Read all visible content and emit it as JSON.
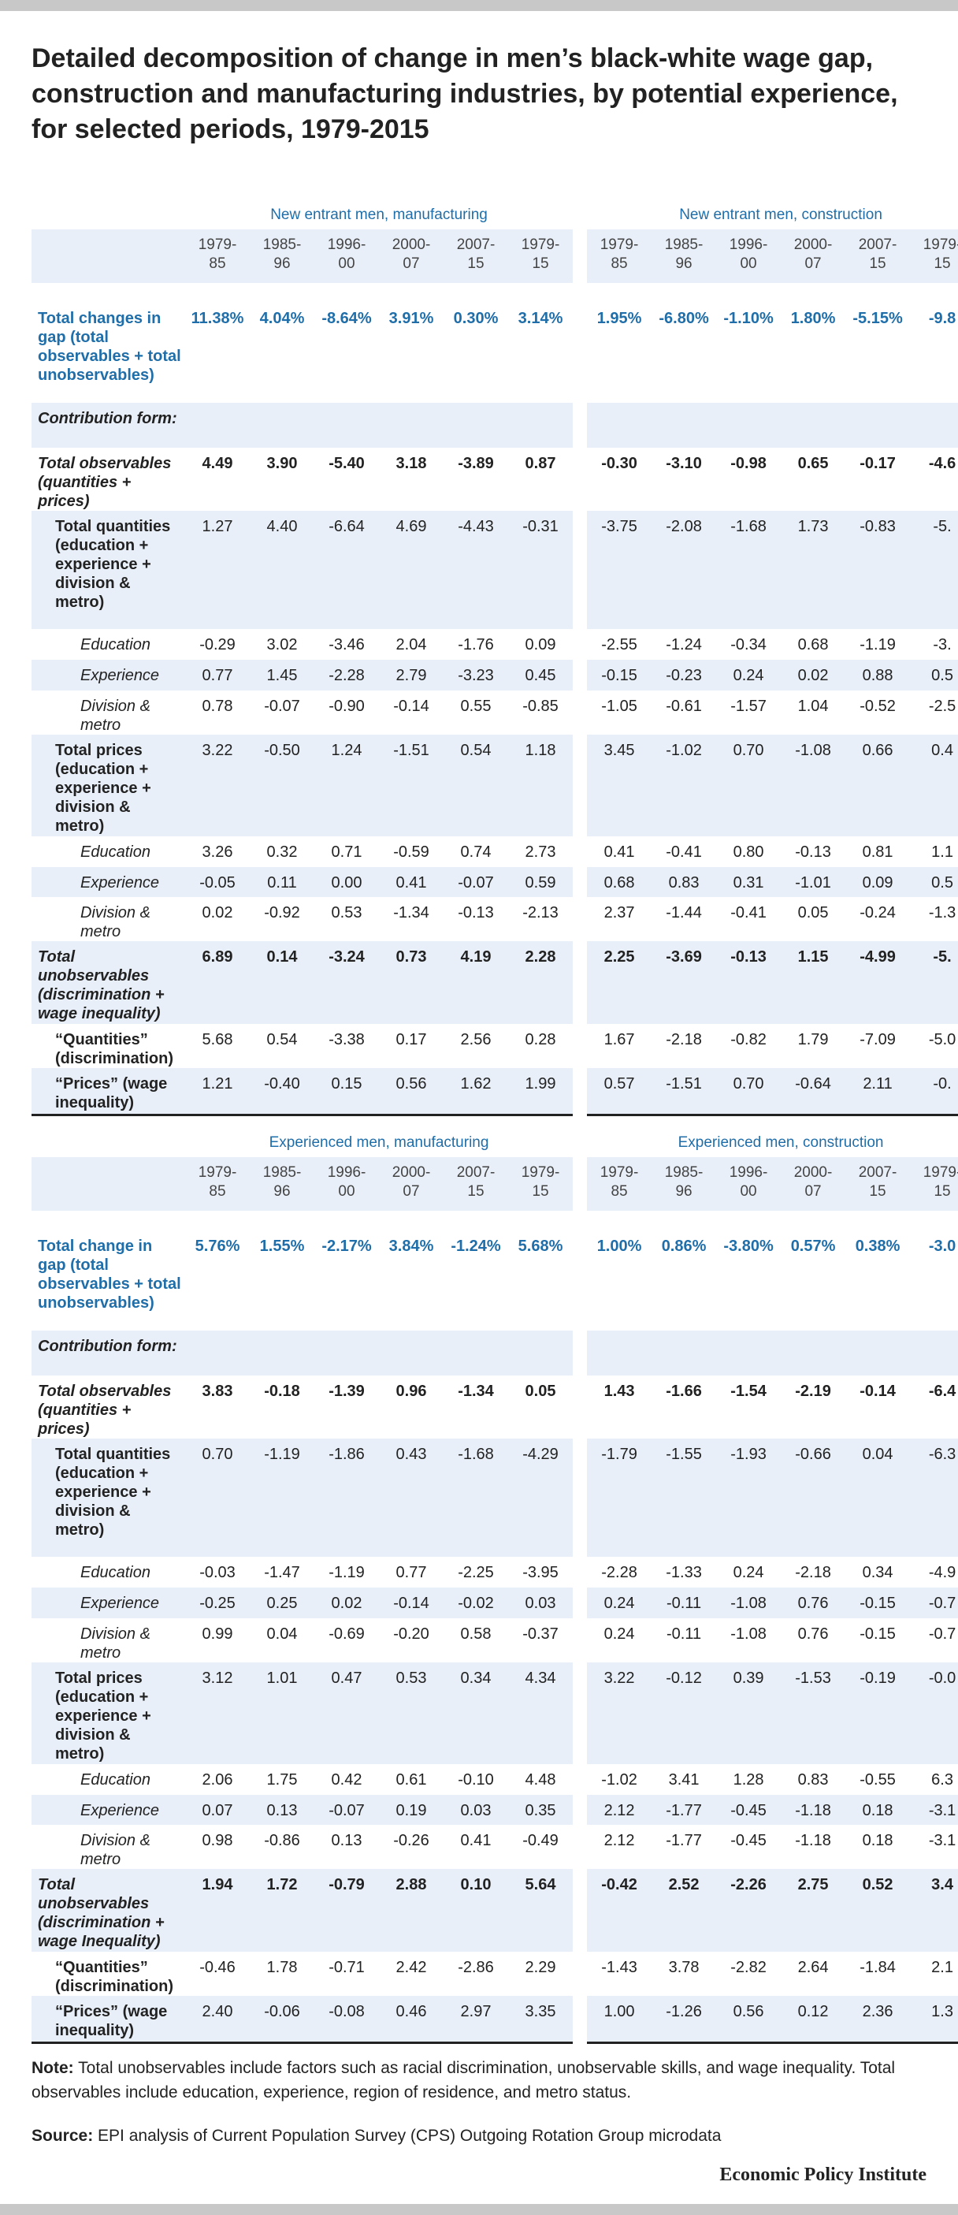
{
  "header": {
    "title": "Detailed decomposition of change in men’s black-white wage gap, construction and manufacturing industries, by potential experience, for selected periods, 1979-2015"
  },
  "sections": [
    {
      "groups": [
        {
          "title": "New entrant men, manufacturing",
          "periods": [
            "1979-85",
            "1985-96",
            "1996-00",
            "2000-07",
            "2007-15",
            "1979-15"
          ]
        },
        {
          "title": "New entrant men, construction",
          "periods": [
            "1979-85",
            "1985-96",
            "1996-00",
            "2000-07",
            "2007-15",
            "1979-15"
          ]
        }
      ],
      "rows": [
        {
          "label": "Total changes in gap (total observables + total unobservables)",
          "values": [
            "11.38%",
            "4.04%",
            "-8.64%",
            "3.91%",
            "0.30%",
            "3.14%",
            "1.95%",
            "-6.80%",
            "-1.10%",
            "1.80%",
            "-5.15%",
            "-9.8"
          ]
        },
        {
          "label": "Contribution form:"
        },
        {
          "label": "Total observables (quantities + prices)",
          "values": [
            "4.49",
            "3.90",
            "-5.40",
            "3.18",
            "-3.89",
            "0.87",
            "-0.30",
            "-3.10",
            "-0.98",
            "0.65",
            "-0.17",
            "-4.6"
          ]
        },
        {
          "label": "Total quantities (education + experience + division & metro)",
          "values": [
            "1.27",
            "4.40",
            "-6.64",
            "4.69",
            "-4.43",
            "-0.31",
            "-3.75",
            "-2.08",
            "-1.68",
            "1.73",
            "-0.83",
            "-5."
          ]
        },
        {
          "label": "Education",
          "values": [
            "-0.29",
            "3.02",
            "-3.46",
            "2.04",
            "-1.76",
            "0.09",
            "-2.55",
            "-1.24",
            "-0.34",
            "0.68",
            "-1.19",
            "-3."
          ]
        },
        {
          "label": "Experience",
          "values": [
            "0.77",
            "1.45",
            "-2.28",
            "2.79",
            "-3.23",
            "0.45",
            "-0.15",
            "-0.23",
            "0.24",
            "0.02",
            "0.88",
            "0.5"
          ]
        },
        {
          "label": "Division & metro",
          "values": [
            "0.78",
            "-0.07",
            "-0.90",
            "-0.14",
            "0.55",
            "-0.85",
            "-1.05",
            "-0.61",
            "-1.57",
            "1.04",
            "-0.52",
            "-2.5"
          ]
        },
        {
          "label": "Total prices (education + experience + division & metro)",
          "values": [
            "3.22",
            "-0.50",
            "1.24",
            "-1.51",
            "0.54",
            "1.18",
            "3.45",
            "-1.02",
            "0.70",
            "-1.08",
            "0.66",
            "0.4"
          ]
        },
        {
          "label": "Education",
          "values": [
            "3.26",
            "0.32",
            "0.71",
            "-0.59",
            "0.74",
            "2.73",
            "0.41",
            "-0.41",
            "0.80",
            "-0.13",
            "0.81",
            "1.1"
          ]
        },
        {
          "label": "Experience",
          "values": [
            "-0.05",
            "0.11",
            "0.00",
            "0.41",
            "-0.07",
            "0.59",
            "0.68",
            "0.83",
            "0.31",
            "-1.01",
            "0.09",
            "0.5"
          ]
        },
        {
          "label": "Division & metro",
          "values": [
            "0.02",
            "-0.92",
            "0.53",
            "-1.34",
            "-0.13",
            "-2.13",
            "2.37",
            "-1.44",
            "-0.41",
            "0.05",
            "-0.24",
            "-1.3"
          ]
        },
        {
          "label": "Total unobservables (discrimination + wage inequality)",
          "values": [
            "6.89",
            "0.14",
            "-3.24",
            "0.73",
            "4.19",
            "2.28",
            "2.25",
            "-3.69",
            "-0.13",
            "1.15",
            "-4.99",
            "-5."
          ]
        },
        {
          "label": "“Quantities” (discrimination)",
          "values": [
            "5.68",
            "0.54",
            "-3.38",
            "0.17",
            "2.56",
            "0.28",
            "1.67",
            "-2.18",
            "-0.82",
            "1.79",
            "-7.09",
            "-5.0"
          ]
        },
        {
          "label": "“Prices” (wage inequality)",
          "values": [
            "1.21",
            "-0.40",
            "0.15",
            "0.56",
            "1.62",
            "1.99",
            "0.57",
            "-1.51",
            "0.70",
            "-0.64",
            "2.11",
            "-0."
          ]
        }
      ]
    },
    {
      "groups": [
        {
          "title": "Experienced men, manufacturing",
          "periods": [
            "1979-85",
            "1985-96",
            "1996-00",
            "2000-07",
            "2007-15",
            "1979-15"
          ]
        },
        {
          "title": "Experienced men, construction",
          "periods": [
            "1979-85",
            "1985-96",
            "1996-00",
            "2000-07",
            "2007-15",
            "1979-15"
          ]
        }
      ],
      "rows": [
        {
          "label": "Total change in gap (total observables + total unobservables)",
          "values": [
            "5.76%",
            "1.55%",
            "-2.17%",
            "3.84%",
            "-1.24%",
            "5.68%",
            "1.00%",
            "0.86%",
            "-3.80%",
            "0.57%",
            "0.38%",
            "-3.0"
          ]
        },
        {
          "label": "Contribution form:"
        },
        {
          "label": "Total observables (quantities + prices)",
          "values": [
            "3.83",
            "-0.18",
            "-1.39",
            "0.96",
            "-1.34",
            "0.05",
            "1.43",
            "-1.66",
            "-1.54",
            "-2.19",
            "-0.14",
            "-6.4"
          ]
        },
        {
          "label": "Total quantities (education + experience + division & metro)",
          "values": [
            "0.70",
            "-1.19",
            "-1.86",
            "0.43",
            "-1.68",
            "-4.29",
            "-1.79",
            "-1.55",
            "-1.93",
            "-0.66",
            "0.04",
            "-6.3"
          ]
        },
        {
          "label": "Education",
          "values": [
            "-0.03",
            "-1.47",
            "-1.19",
            "0.77",
            "-2.25",
            "-3.95",
            "-2.28",
            "-1.33",
            "0.24",
            "-2.18",
            "0.34",
            "-4.9"
          ]
        },
        {
          "label": "Experience",
          "values": [
            "-0.25",
            "0.25",
            "0.02",
            "-0.14",
            "-0.02",
            "0.03",
            "0.24",
            "-0.11",
            "-1.08",
            "0.76",
            "-0.15",
            "-0.7"
          ]
        },
        {
          "label": "Division & metro",
          "values": [
            "0.99",
            "0.04",
            "-0.69",
            "-0.20",
            "0.58",
            "-0.37",
            "0.24",
            "-0.11",
            "-1.08",
            "0.76",
            "-0.15",
            "-0.7"
          ]
        },
        {
          "label": "Total prices (education + experience + division & metro)",
          "values": [
            "3.12",
            "1.01",
            "0.47",
            "0.53",
            "0.34",
            "4.34",
            "3.22",
            "-0.12",
            "0.39",
            "-1.53",
            "-0.19",
            "-0.0"
          ]
        },
        {
          "label": "Education",
          "values": [
            "2.06",
            "1.75",
            "0.42",
            "0.61",
            "-0.10",
            "4.48",
            "-1.02",
            "3.41",
            "1.28",
            "0.83",
            "-0.55",
            "6.3"
          ]
        },
        {
          "label": "Experience",
          "values": [
            "0.07",
            "0.13",
            "-0.07",
            "0.19",
            "0.03",
            "0.35",
            "2.12",
            "-1.77",
            "-0.45",
            "-1.18",
            "0.18",
            "-3.1"
          ]
        },
        {
          "label": "Division & metro",
          "values": [
            "0.98",
            "-0.86",
            "0.13",
            "-0.26",
            "0.41",
            "-0.49",
            "2.12",
            "-1.77",
            "-0.45",
            "-1.18",
            "0.18",
            "-3.1"
          ]
        },
        {
          "label": "Total unobservables (discrimination + wage Inequality)",
          "values": [
            "1.94",
            "1.72",
            "-0.79",
            "2.88",
            "0.10",
            "5.64",
            "-0.42",
            "2.52",
            "-2.26",
            "2.75",
            "0.52",
            "3.4"
          ]
        },
        {
          "label": "“Quantities” (discrimination)",
          "values": [
            "-0.46",
            "1.78",
            "-0.71",
            "2.42",
            "-2.86",
            "2.29",
            "-1.43",
            "3.78",
            "-2.82",
            "2.64",
            "-1.84",
            "2.1"
          ]
        },
        {
          "label": "“Prices” (wage inequality)",
          "values": [
            "2.40",
            "-0.06",
            "-0.08",
            "0.46",
            "2.97",
            "3.35",
            "1.00",
            "-1.26",
            "0.56",
            "0.12",
            "2.36",
            "1.3"
          ]
        }
      ]
    }
  ],
  "note": {
    "label": "Note:",
    "text": "Total unobservables include factors such as racial discrimination, unobservable skills, and wage inequality. Total observables include education, experience, region of residence, and metro status."
  },
  "source": {
    "label": "Source:",
    "text": "EPI analysis of Current Population Survey (CPS) Outgoing Rotation Group microdata"
  },
  "footer": {
    "brand": "Economic Policy Institute"
  }
}
